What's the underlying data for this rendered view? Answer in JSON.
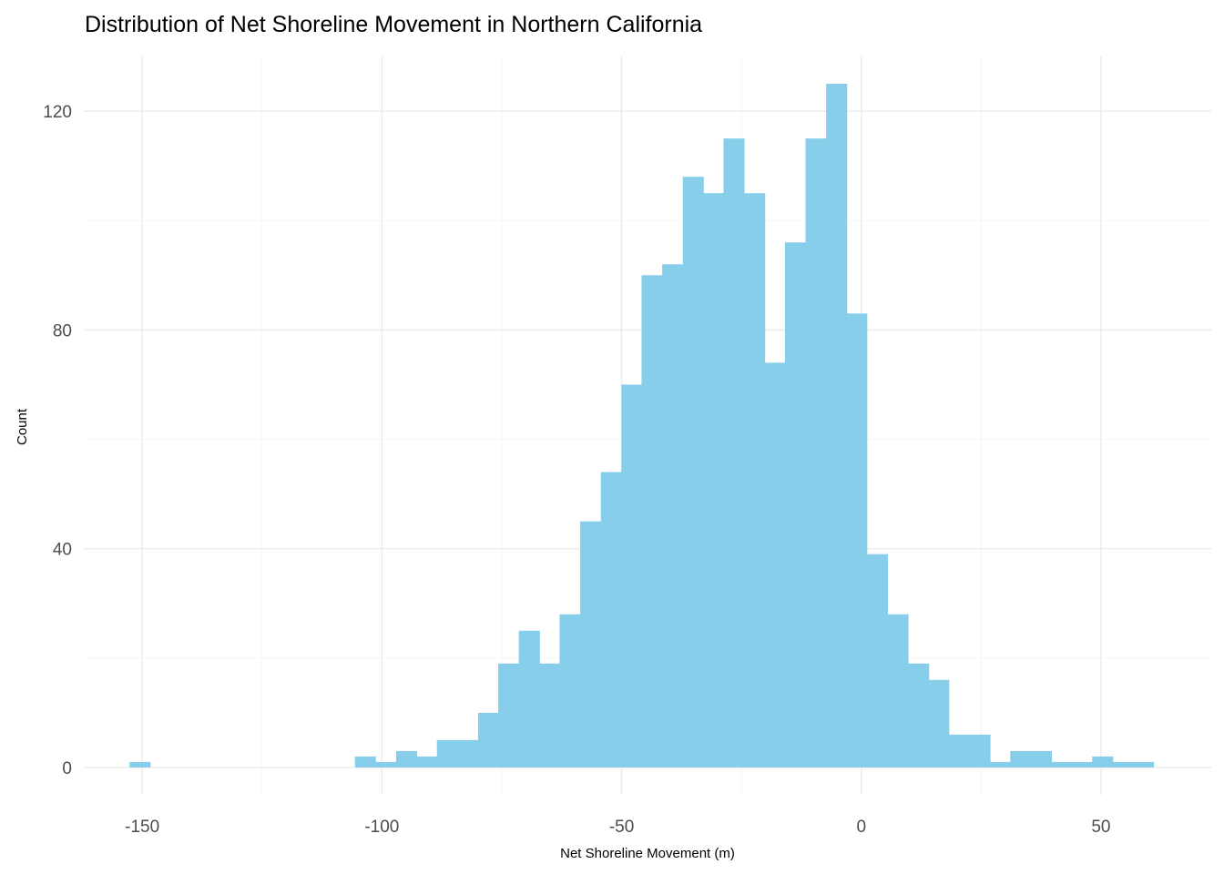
{
  "chart_data": {
    "type": "bar",
    "subtype": "histogram",
    "title": "Distribution of Net Shoreline Movement in Northern California",
    "xlabel": "Net Shoreline Movement (m)",
    "ylabel": "Count",
    "xlim": [
      -162,
      73
    ],
    "ylim": [
      -5,
      130
    ],
    "x_ticks": [
      -150,
      -100,
      -50,
      0,
      50
    ],
    "x_tick_labels": [
      "-150",
      "-100",
      "-50",
      "0",
      "50"
    ],
    "y_ticks": [
      0,
      40,
      80,
      120
    ],
    "y_tick_labels": [
      "0",
      "40",
      "80",
      "120"
    ],
    "grid": true,
    "bar_color": "#87ceeb",
    "bin_width": 4.27,
    "bin_centers": [
      -150.5,
      -103.5,
      -99.2,
      -94.9,
      -90.7,
      -86.4,
      -82.1,
      -77.8,
      -73.6,
      -69.3,
      -65.0,
      -60.8,
      -56.5,
      -52.2,
      -47.9,
      -43.7,
      -39.4,
      -35.1,
      -30.9,
      -26.6,
      -22.3,
      -18.0,
      -13.8,
      -9.5,
      -5.2,
      -1.0,
      3.3,
      7.6,
      11.9,
      16.1,
      20.4,
      24.7,
      28.9,
      33.2,
      37.5,
      41.8,
      46.0,
      50.3,
      54.6,
      58.8
    ],
    "counts": [
      1,
      2,
      1,
      3,
      2,
      5,
      5,
      10,
      19,
      25,
      19,
      28,
      45,
      54,
      70,
      90,
      92,
      108,
      105,
      115,
      105,
      74,
      96,
      115,
      125,
      83,
      39,
      28,
      19,
      16,
      6,
      6,
      1,
      3,
      3,
      1,
      1,
      2,
      1,
      1
    ]
  }
}
